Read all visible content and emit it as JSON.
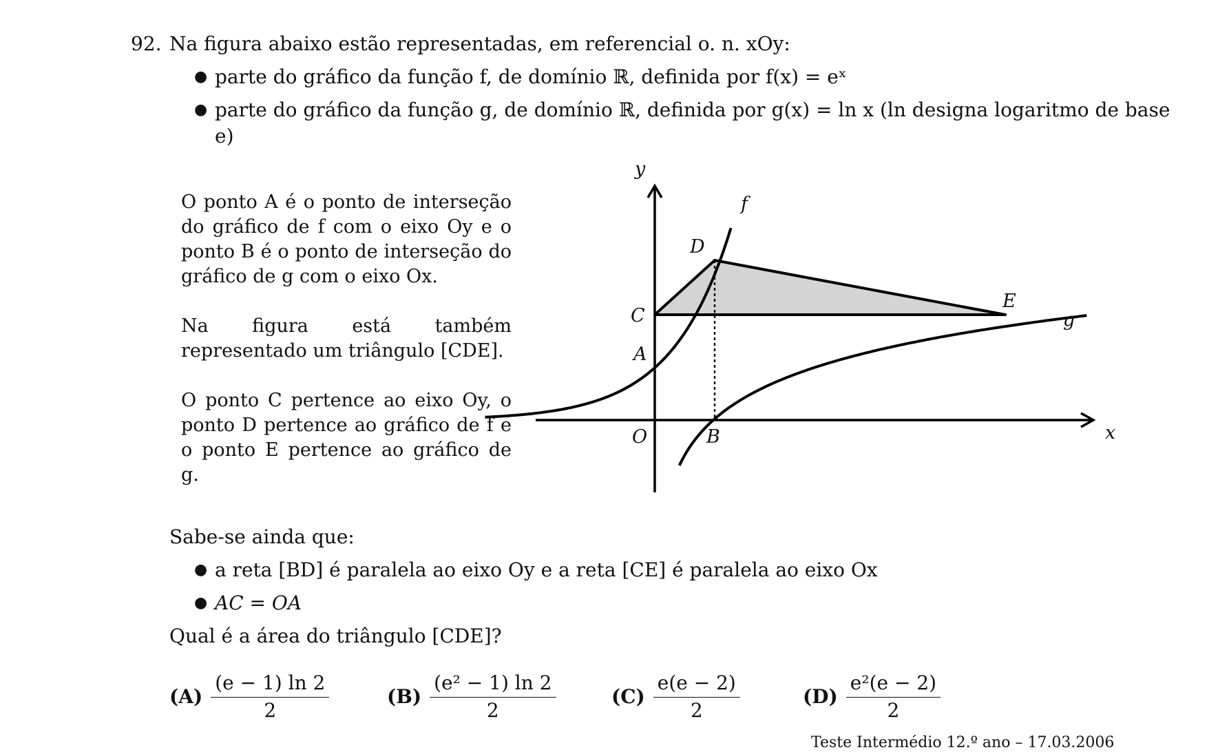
{
  "question": {
    "number": "92.",
    "intro": "Na figura abaixo estão representadas, em referencial o. n. xOy:",
    "bullets": [
      "parte do gráfico da função f, de domínio ℝ, definida por f(x) = eˣ",
      "parte do gráfico da função g, de domínio ℝ, definida por g(x) = ln x (ln designa logaritmo de base",
      "e)"
    ],
    "paragraphs": [
      "O ponto A é o ponto de interseção do gráfico de f com o eixo Oy e o ponto B é o ponto de interseção do gráfico de g com o eixo Ox.",
      "Na figura está também representado um triângulo [CDE].",
      "O ponto C pertence ao eixo Oy, o ponto D pertence ao gráfico de f e o ponto E pertence ao gráfico de g."
    ],
    "known_intro": "Sabe-se ainda que:",
    "known": [
      "a reta [BD] é paralela ao eixo Oy e a reta [CE] é paralela ao eixo Ox",
      "AC = OA"
    ],
    "ask": "Qual é a área do triângulo [CDE]?"
  },
  "figure": {
    "axis_x": "x",
    "axis_y": "y",
    "points": {
      "O": "O",
      "A": "A",
      "B": "B",
      "C": "C",
      "D": "D",
      "E": "E"
    },
    "curves": {
      "f": "f",
      "g": "g"
    },
    "fill_color": "#d4d4d4"
  },
  "options": [
    {
      "label": "(A)",
      "num": "(e − 1) ln 2",
      "den": "2"
    },
    {
      "label": "(B)",
      "num": "(e² − 1) ln 2",
      "den": "2"
    },
    {
      "label": "(C)",
      "num": "e(e − 2)",
      "den": "2"
    },
    {
      "label": "(D)",
      "num": "e²(e − 2)",
      "den": "2"
    }
  ],
  "footer": "Teste Intermédio 12.º ano – 17.03.2006"
}
